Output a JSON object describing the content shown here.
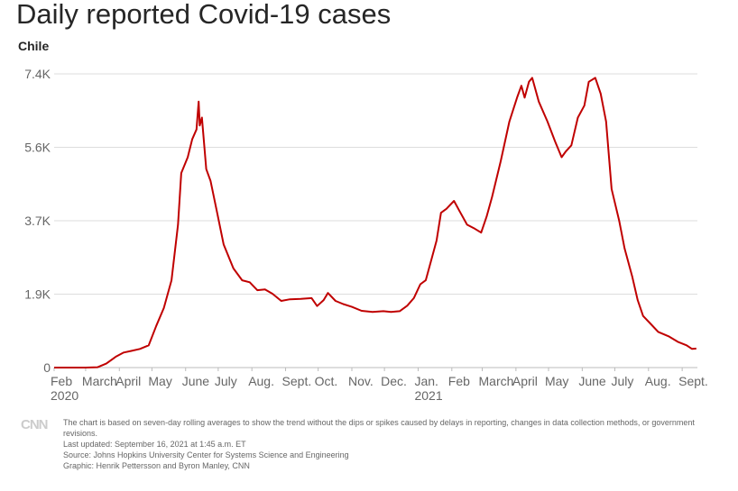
{
  "title": "Daily reported Covid-19 cases",
  "subtitle": "Chile",
  "colors": {
    "line": "#c00000",
    "grid": "#dddddd",
    "axis_text": "#666666",
    "logo": "#cccccc"
  },
  "footer": {
    "logo_icon": "cnn-logo-icon",
    "note": "The chart is based on seven-day rolling averages to show the trend without the dips or spikes caused by delays in reporting, changes in data collection methods, or government revisions.",
    "updated": "Last updated: September 16, 2021 at 1:45 a.m. ET",
    "source": "Source: Johns Hopkins University Center for Systems Science and Engineering",
    "graphic": "Graphic: Henrik Pettersson and Byron Manley, CNN"
  },
  "chart_data": {
    "type": "line",
    "title": "Daily reported Covid-19 cases",
    "subtitle": "Chile",
    "xlabel": "",
    "ylabel": "",
    "ylim": [
      0,
      7400
    ],
    "grid": true,
    "y_ticks": [
      {
        "value": 0,
        "label": "0"
      },
      {
        "value": 1850,
        "label": "1.9K"
      },
      {
        "value": 3700,
        "label": "3.7K"
      },
      {
        "value": 5550,
        "label": "5.6K"
      },
      {
        "value": 7400,
        "label": "7.4K"
      }
    ],
    "x_ticks": [
      {
        "date": "2020-02-01",
        "label": "Feb",
        "year": "2020"
      },
      {
        "date": "2020-03-01",
        "label": "March"
      },
      {
        "date": "2020-04-01",
        "label": "April"
      },
      {
        "date": "2020-05-01",
        "label": "May"
      },
      {
        "date": "2020-06-01",
        "label": "June"
      },
      {
        "date": "2020-07-01",
        "label": "July"
      },
      {
        "date": "2020-08-01",
        "label": "Aug."
      },
      {
        "date": "2020-09-01",
        "label": "Sept."
      },
      {
        "date": "2020-10-01",
        "label": "Oct."
      },
      {
        "date": "2020-11-01",
        "label": "Nov."
      },
      {
        "date": "2020-12-01",
        "label": "Dec."
      },
      {
        "date": "2021-01-01",
        "label": "Jan.",
        "year": "2021"
      },
      {
        "date": "2021-02-01",
        "label": "Feb"
      },
      {
        "date": "2021-03-01",
        "label": "March"
      },
      {
        "date": "2021-04-01",
        "label": "April"
      },
      {
        "date": "2021-05-01",
        "label": "May"
      },
      {
        "date": "2021-06-01",
        "label": "June"
      },
      {
        "date": "2021-07-01",
        "label": "July"
      },
      {
        "date": "2021-08-01",
        "label": "Aug."
      },
      {
        "date": "2021-09-01",
        "label": "Sept."
      }
    ],
    "series": [
      {
        "points": [
          [
            "2020-02-01",
            0
          ],
          [
            "2020-03-01",
            0
          ],
          [
            "2020-03-12",
            10
          ],
          [
            "2020-03-20",
            100
          ],
          [
            "2020-03-29",
            280
          ],
          [
            "2020-04-05",
            380
          ],
          [
            "2020-04-12",
            420
          ],
          [
            "2020-04-20",
            470
          ],
          [
            "2020-04-28",
            560
          ],
          [
            "2020-05-05",
            1050
          ],
          [
            "2020-05-12",
            1500
          ],
          [
            "2020-05-19",
            2200
          ],
          [
            "2020-05-25",
            3600
          ],
          [
            "2020-05-28",
            4900
          ],
          [
            "2020-06-03",
            5300
          ],
          [
            "2020-06-07",
            5750
          ],
          [
            "2020-06-11",
            6000
          ],
          [
            "2020-06-13",
            6700
          ],
          [
            "2020-06-14",
            6100
          ],
          [
            "2020-06-16",
            6300
          ],
          [
            "2020-06-20",
            5000
          ],
          [
            "2020-06-24",
            4700
          ],
          [
            "2020-06-30",
            3900
          ],
          [
            "2020-07-06",
            3100
          ],
          [
            "2020-07-15",
            2500
          ],
          [
            "2020-07-23",
            2200
          ],
          [
            "2020-07-30",
            2150
          ],
          [
            "2020-08-06",
            1950
          ],
          [
            "2020-08-13",
            1970
          ],
          [
            "2020-08-20",
            1860
          ],
          [
            "2020-08-28",
            1680
          ],
          [
            "2020-09-05",
            1720
          ],
          [
            "2020-09-15",
            1730
          ],
          [
            "2020-09-25",
            1750
          ],
          [
            "2020-09-30",
            1550
          ],
          [
            "2020-10-06",
            1700
          ],
          [
            "2020-10-10",
            1880
          ],
          [
            "2020-10-17",
            1680
          ],
          [
            "2020-10-24",
            1600
          ],
          [
            "2020-11-01",
            1530
          ],
          [
            "2020-11-10",
            1430
          ],
          [
            "2020-11-20",
            1400
          ],
          [
            "2020-11-30",
            1420
          ],
          [
            "2020-12-07",
            1400
          ],
          [
            "2020-12-15",
            1420
          ],
          [
            "2020-12-22",
            1560
          ],
          [
            "2020-12-28",
            1750
          ],
          [
            "2021-01-03",
            2100
          ],
          [
            "2021-01-08",
            2200
          ],
          [
            "2021-01-13",
            2700
          ],
          [
            "2021-01-18",
            3200
          ],
          [
            "2021-01-22",
            3900
          ],
          [
            "2021-01-27",
            4000
          ],
          [
            "2021-02-03",
            4200
          ],
          [
            "2021-02-09",
            3900
          ],
          [
            "2021-02-15",
            3600
          ],
          [
            "2021-02-22",
            3500
          ],
          [
            "2021-02-28",
            3400
          ],
          [
            "2021-03-05",
            3800
          ],
          [
            "2021-03-10",
            4300
          ],
          [
            "2021-03-18",
            5200
          ],
          [
            "2021-03-26",
            6200
          ],
          [
            "2021-04-02",
            6800
          ],
          [
            "2021-04-06",
            7100
          ],
          [
            "2021-04-09",
            6800
          ],
          [
            "2021-04-13",
            7200
          ],
          [
            "2021-04-16",
            7300
          ],
          [
            "2021-04-22",
            6700
          ],
          [
            "2021-04-30",
            6200
          ],
          [
            "2021-05-07",
            5700
          ],
          [
            "2021-05-13",
            5300
          ],
          [
            "2021-05-17",
            5450
          ],
          [
            "2021-05-22",
            5600
          ],
          [
            "2021-05-28",
            6300
          ],
          [
            "2021-06-03",
            6600
          ],
          [
            "2021-06-07",
            7200
          ],
          [
            "2021-06-13",
            7300
          ],
          [
            "2021-06-18",
            6900
          ],
          [
            "2021-06-23",
            6200
          ],
          [
            "2021-06-28",
            4500
          ],
          [
            "2021-07-05",
            3700
          ],
          [
            "2021-07-10",
            3000
          ],
          [
            "2021-07-17",
            2300
          ],
          [
            "2021-07-22",
            1700
          ],
          [
            "2021-07-27",
            1300
          ],
          [
            "2021-08-03",
            1100
          ],
          [
            "2021-08-10",
            900
          ],
          [
            "2021-08-20",
            780
          ],
          [
            "2021-08-28",
            650
          ],
          [
            "2021-09-05",
            560
          ],
          [
            "2021-09-10",
            470
          ],
          [
            "2021-09-14",
            480
          ]
        ]
      }
    ]
  }
}
